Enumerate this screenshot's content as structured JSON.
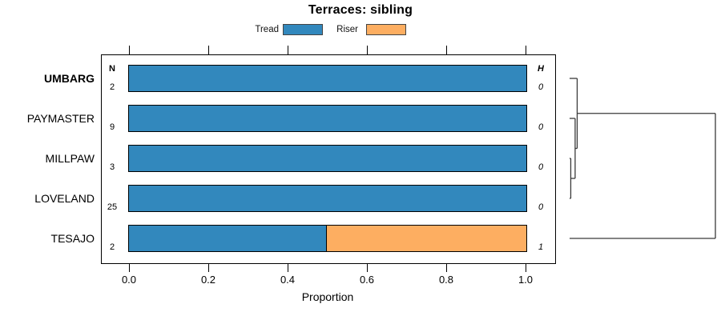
{
  "title": "Terraces: sibling",
  "legend": {
    "items": [
      {
        "label": "Tread",
        "color": "#3288BD"
      },
      {
        "label": "Riser",
        "color": "#FDAE61"
      }
    ]
  },
  "columns": {
    "n_header": "N",
    "h_header": "H"
  },
  "axis": {
    "label": "Proportion",
    "tick_labels": [
      "0.0",
      "0.2",
      "0.4",
      "0.6",
      "0.8",
      "1.0"
    ],
    "tick_values": [
      0.0,
      0.2,
      0.4,
      0.6,
      0.8,
      1.0
    ]
  },
  "chart_data": {
    "type": "bar",
    "orientation": "horizontal",
    "stacked": true,
    "title": "Terraces: sibling",
    "xlabel": "Proportion",
    "xlim": [
      0,
      1
    ],
    "grid": false,
    "legend_position": "top",
    "categories": [
      "UMBARG",
      "PAYMASTER",
      "MILLPAW",
      "LOVELAND",
      "TESAJO"
    ],
    "highlighted_category": "UMBARG",
    "series": [
      {
        "name": "Tread",
        "color": "#3288BD",
        "values": [
          1.0,
          1.0,
          1.0,
          1.0,
          0.5
        ]
      },
      {
        "name": "Riser",
        "color": "#FDAE61",
        "values": [
          0.0,
          0.0,
          0.0,
          0.0,
          0.5
        ]
      }
    ],
    "n_values": [
      "2",
      "9",
      "3",
      "25",
      "2"
    ],
    "h_values": [
      "0",
      "0",
      "0",
      "0",
      "1"
    ],
    "bar_border_color": "#000000",
    "dendrogram": {
      "line_color": "#3a3a3a",
      "leaf_order": [
        "UMBARG",
        "PAYMASTER",
        "MILLPAW",
        "LOVELAND",
        "TESAJO"
      ],
      "merges": [
        {
          "id": "m0",
          "children": [
            "MILLPAW",
            "LOVELAND"
          ],
          "height": 0.008
        },
        {
          "id": "m1",
          "children": [
            "PAYMASTER",
            "m0"
          ],
          "height": 0.038
        },
        {
          "id": "m2",
          "children": [
            "UMBARG",
            "m1"
          ],
          "height": 0.052
        },
        {
          "id": "m3",
          "children": [
            "m2",
            "TESAJO"
          ],
          "height": 1.0
        }
      ]
    }
  }
}
